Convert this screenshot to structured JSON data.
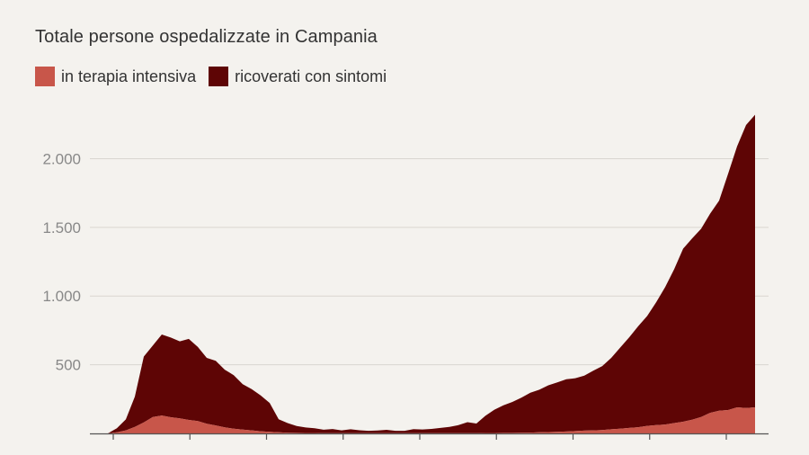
{
  "chart_data": {
    "type": "area",
    "title": "Totale persone ospedalizzate in Campania",
    "xlabel": "",
    "ylabel": "",
    "ylim": [
      0,
      2350
    ],
    "yticks": [
      500,
      1000,
      1500,
      2000
    ],
    "ytick_labels": [
      "500",
      "1.000",
      "1.500",
      "2.000"
    ],
    "grid": true,
    "legend_position": "top-left",
    "stacked": true,
    "x": [
      0,
      4,
      8,
      12,
      16,
      20,
      24,
      28,
      32,
      36,
      40,
      44,
      48,
      52,
      56,
      60,
      64,
      68,
      72,
      76,
      80,
      84,
      88,
      92,
      96,
      100,
      104,
      108,
      112,
      116,
      120,
      124,
      128,
      132,
      136,
      140,
      144,
      148,
      152,
      156,
      160,
      164,
      168,
      172,
      176,
      180,
      184,
      188,
      192,
      196,
      200,
      204,
      208,
      212,
      216,
      220,
      224,
      228,
      232,
      236,
      240,
      244,
      248,
      252,
      256,
      260,
      264,
      268,
      272,
      276,
      280,
      284,
      288
    ],
    "series": [
      {
        "name": "in terapia intensiva",
        "color": "#c8564a",
        "values": [
          0,
          8,
          22,
          48,
          80,
          120,
          130,
          118,
          110,
          98,
          90,
          70,
          58,
          44,
          34,
          28,
          22,
          16,
          12,
          8,
          5,
          4,
          3,
          3,
          2,
          2,
          2,
          2,
          1,
          1,
          1,
          1,
          1,
          1,
          1,
          1,
          1,
          2,
          2,
          2,
          2,
          2,
          3,
          3,
          4,
          4,
          5,
          6,
          8,
          10,
          12,
          14,
          17,
          20,
          22,
          25,
          30,
          35,
          40,
          45,
          55,
          60,
          65,
          75,
          85,
          100,
          120,
          150,
          165,
          170,
          190,
          185,
          190
        ]
      },
      {
        "name": "ricoverati con sintomi",
        "color": "#5e0505",
        "values": [
          0,
          30,
          80,
          220,
          480,
          520,
          590,
          580,
          560,
          590,
          540,
          480,
          470,
          420,
          390,
          330,
          300,
          260,
          210,
          95,
          70,
          50,
          40,
          35,
          25,
          30,
          20,
          28,
          22,
          18,
          20,
          25,
          18,
          18,
          30,
          28,
          32,
          38,
          45,
          58,
          80,
          70,
          125,
          170,
          200,
          225,
          255,
          290,
          310,
          340,
          360,
          380,
          385,
          400,
          435,
          465,
          520,
          590,
          660,
          735,
          800,
          895,
          1000,
          1120,
          1260,
          1320,
          1370,
          1450,
          1530,
          1720,
          1900,
          2060,
          2130
        ]
      }
    ],
    "x_tick_count": 9,
    "x_tick_labels": []
  }
}
